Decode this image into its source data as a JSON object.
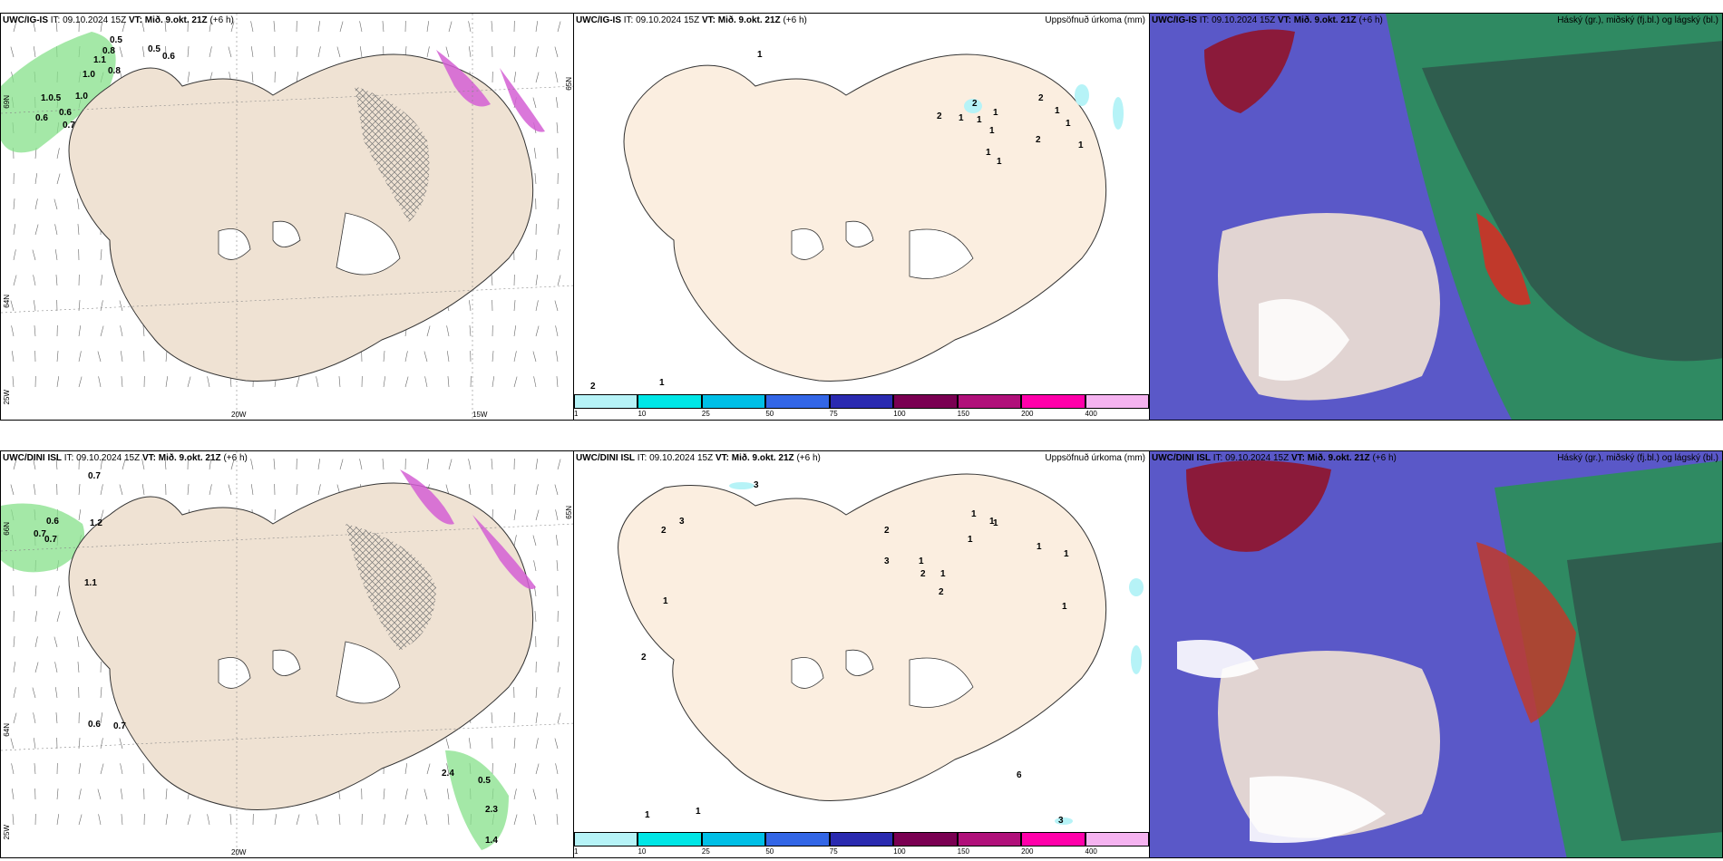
{
  "top": {
    "wind": {
      "model": "UWC/IG-IS",
      "it": "IT: 09.10.2024 15Z",
      "vt": "VT: Mið. 9.okt. 21Z",
      "lead": "(+6 h)",
      "labels": [
        "0.5",
        "0.8",
        "0.5",
        "0.6",
        "1.1",
        "0.8",
        "1.0",
        "1.0",
        "1.0.5",
        "0.6",
        "0.6",
        "0.7"
      ],
      "axis": [
        "69N",
        "65N",
        "64N",
        "25W",
        "20W",
        "15W"
      ]
    },
    "precip": {
      "model": "UWC/IG-IS",
      "it": "IT: 09.10.2024 15Z",
      "vt": "VT: Mið. 9.okt. 21Z",
      "lead": "(+6 h)",
      "right": "Uppsöfnuð úrkoma (mm)",
      "labels": [
        "1",
        "2",
        "1",
        "1",
        "2",
        "1",
        "1",
        "1",
        "2",
        "2",
        "1",
        "1",
        "1",
        "1",
        "2",
        "1"
      ]
    },
    "cloud": {
      "model": "UWC/IG-IS",
      "it": "IT: 09.10.2024 15Z",
      "vt": "VT: Mið. 9.okt. 21Z",
      "lead": "(+6 h)",
      "right": "Háský (gr.), miðský (fj.bl.) og lágský (bl.)"
    }
  },
  "bottom": {
    "wind": {
      "model": "UWC/DINI ISL",
      "it": "IT: 09.10.2024 15Z",
      "vt": "VT: Mið. 9.okt. 21Z",
      "lead": "(+6 h)",
      "labels": [
        "0.7",
        "0.6",
        "0.7",
        "1.2",
        "0.7",
        "1.1",
        "0.6",
        "0.7",
        "2.4",
        "0.5",
        "2.3",
        "1.4"
      ],
      "axis": [
        "66N",
        "65N",
        "64N",
        "25W",
        "20W"
      ]
    },
    "precip": {
      "model": "UWC/DINI ISL",
      "it": "IT: 09.10.2024 15Z",
      "vt": "VT: Mið. 9.okt. 21Z",
      "lead": "(+6 h)",
      "right": "Uppsöfnuð úrkoma (mm)",
      "labels": [
        "3",
        "2",
        "3",
        "1",
        "2",
        "1",
        "1",
        "2",
        "2",
        "1",
        "3",
        "1",
        "1",
        "2",
        "1",
        "1",
        "1",
        "1",
        "6",
        "3",
        "1",
        "1"
      ]
    },
    "cloud": {
      "model": "UWC/DINI ISL",
      "it": "IT: 09.10.2024 15Z",
      "vt": "VT: Mið. 9.okt. 21Z",
      "lead": "(+6 h)",
      "right": "Háský (gr.), miðský (fj.bl.) og lágský (bl.)"
    }
  },
  "colorbar": {
    "ticks": [
      "1",
      "10",
      "25",
      "50",
      "75",
      "100",
      "150",
      "200",
      "400"
    ],
    "colors": [
      "#b6f3f7",
      "#00e6e6",
      "#00bfe6",
      "#3366e6",
      "#2a2ab0",
      "#7a0052",
      "#b0107a",
      "#ff00aa",
      "#f5b3f0"
    ]
  },
  "colors": {
    "land": "#efe2d3",
    "precip_land": "#fbeee0",
    "high_cloud": "#8b1a3a",
    "mid_cloud": "#2f5d4e",
    "low_cloud": "#5a58c8"
  }
}
